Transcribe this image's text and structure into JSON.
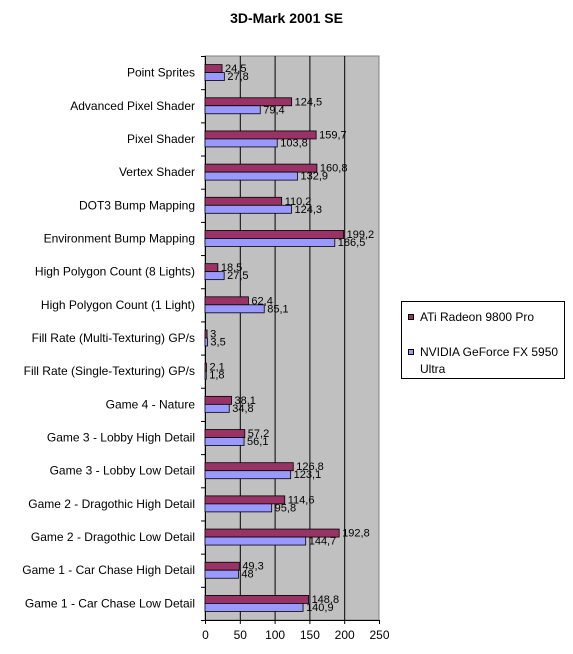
{
  "chart_data": {
    "type": "bar",
    "orientation": "horizontal",
    "title": "3D-Mark 2001 SE",
    "categories": [
      "Point Sprites",
      "Advanced Pixel Shader",
      "Pixel Shader",
      "Vertex Shader",
      "DOT3 Bump Mapping",
      "Environment Bump Mapping",
      "High Polygon Count (8 Lights)",
      "High Polygon Count (1 Light)",
      "Fill Rate (Multi-Texturing) GP/s",
      "Fill Rate (Single-Texturing) GP/s",
      "Game 4 - Nature",
      "Game 3 - Lobby High Detail",
      "Game 3 - Lobby Low Detail",
      "Game 2 - Dragothic High Detail",
      "Game 2 - Dragothic Low Detail",
      "Game 1 - Car Chase High Detail",
      "Game 1 - Car Chase Low Detail"
    ],
    "series": [
      {
        "name": "ATi Radeon 9800 Pro",
        "color": "#993366",
        "values": [
          24.5,
          124.5,
          159.7,
          160.8,
          110.2,
          199.2,
          18.5,
          62.4,
          3,
          2.1,
          38.1,
          57.2,
          126.8,
          114.6,
          192.8,
          49.3,
          148.8
        ],
        "labels": [
          "24,5",
          "124,5",
          "159,7",
          "160,8",
          "110,2",
          "199,2",
          "18,5",
          "62,4",
          "3",
          "2,1",
          "38,1",
          "57,2",
          "126,8",
          "114,6",
          "192,8",
          "49,3",
          "148,8"
        ]
      },
      {
        "name": "NVIDIA GeForce FX 5950 Ultra",
        "color": "#9999FF",
        "values": [
          27.8,
          79.4,
          103.8,
          132.9,
          124.3,
          186.5,
          27.5,
          85.1,
          3.5,
          1.8,
          34.8,
          56.1,
          123.1,
          95.8,
          144.7,
          48,
          140.9
        ],
        "labels": [
          "27,8",
          "79,4",
          "103,8",
          "132,9",
          "124,3",
          "186,5",
          "27,5",
          "85,1",
          "3,5",
          "1,8",
          "34,8",
          "56,1",
          "123,1",
          "95,8",
          "144,7",
          "48",
          "140,9"
        ]
      }
    ],
    "x_ticks": [
      "0",
      "50",
      "100",
      "150",
      "200",
      "250"
    ],
    "xlim": [
      0,
      250
    ],
    "grid": true,
    "plot_background": "#C0C0C0",
    "legend_position": "right"
  }
}
